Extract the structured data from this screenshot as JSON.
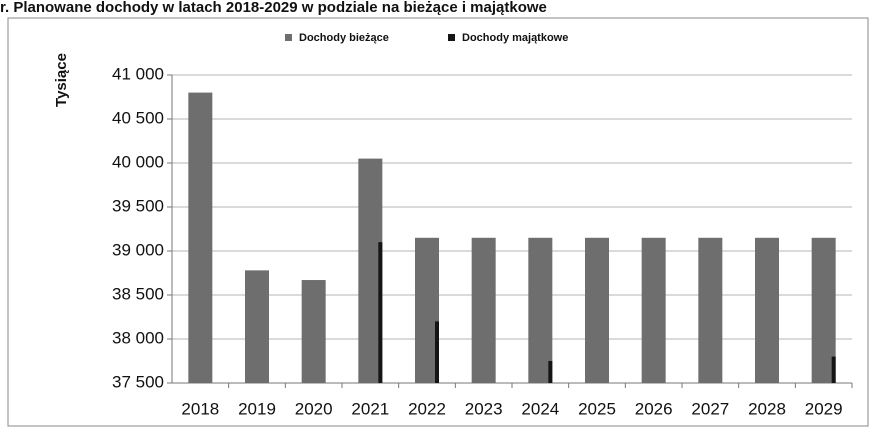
{
  "chart_data": {
    "type": "bar",
    "title": "r. Planowane dochody w latach 2018-2029 w podziale na bieżące i majątkowe",
    "y_label": "Tysiące",
    "categories": [
      "2018",
      "2019",
      "2020",
      "2021",
      "2022",
      "2023",
      "2024",
      "2025",
      "2026",
      "2027",
      "2028",
      "2029"
    ],
    "series": [
      {
        "name": "Dochody bieżące",
        "color": "#6e6e6e",
        "values": [
          40800,
          38780,
          38670,
          40050,
          39150,
          39150,
          39150,
          39150,
          39150,
          39150,
          39150,
          39150
        ]
      },
      {
        "name": "Dochody majątkowe",
        "color": "#151515",
        "values": [
          37500,
          37500,
          37500,
          39100,
          38200,
          37500,
          37750,
          37500,
          37500,
          37500,
          37500,
          37800
        ]
      }
    ],
    "ylim": [
      37500,
      41000
    ],
    "yticks": [
      {
        "value": 37500,
        "label": "37 500"
      },
      {
        "value": 38000,
        "label": "38 000"
      },
      {
        "value": 38500,
        "label": "38 500"
      },
      {
        "value": 39000,
        "label": "39 000"
      },
      {
        "value": 39500,
        "label": "39 500"
      },
      {
        "value": 40000,
        "label": "40 000"
      },
      {
        "value": 40500,
        "label": "40 500"
      },
      {
        "value": 41000,
        "label": "41 000"
      }
    ],
    "grid": true
  }
}
